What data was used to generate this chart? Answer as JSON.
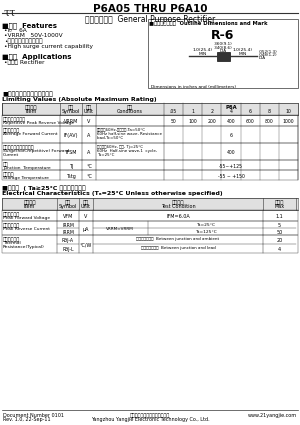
{
  "title": "P6A05 THRU P6A10",
  "subtitle_cn": "硅整流二极管",
  "subtitle_en": "General Purpose Rectifier",
  "features_title": "■特性  Features",
  "features": [
    "•I₀    6A",
    "•VRRM   50V-1000V",
    "•耐正向涌涌电流能力强",
    "•High surge current capability"
  ],
  "app_title": "■用途  Applications",
  "app_items": [
    "•整流用 Rectifier"
  ],
  "outline_title": "■外形尺寸和印记  Outline Dimensions and Mark",
  "package": "R-6",
  "dim_note": "Dimensions in inches and (millimeters)",
  "limit_title_cn": "■极限值（绝对最大额定值）",
  "limit_title_en": "Limiting Values (Absolute Maximum Rating)",
  "elec_title_cn": "■电特性",
  "elec_cond_cn": "( Ta≥25°C 除另另有规定）",
  "elec_title_en": "Electrical Characteristics (Tₐ=25°C Unless otherwise specified)",
  "footer_doc": "Document Number 0101",
  "footer_rev": "Rev. 1.0, 22-Sep-11",
  "footer_company_cn": "扬州扬杰电子科技股份有限公司",
  "footer_company_en": "Yangzhou Yangjie Electronic Technology Co., Ltd.",
  "footer_web": "www.21yangjie.com",
  "bg_color": "#ffffff"
}
